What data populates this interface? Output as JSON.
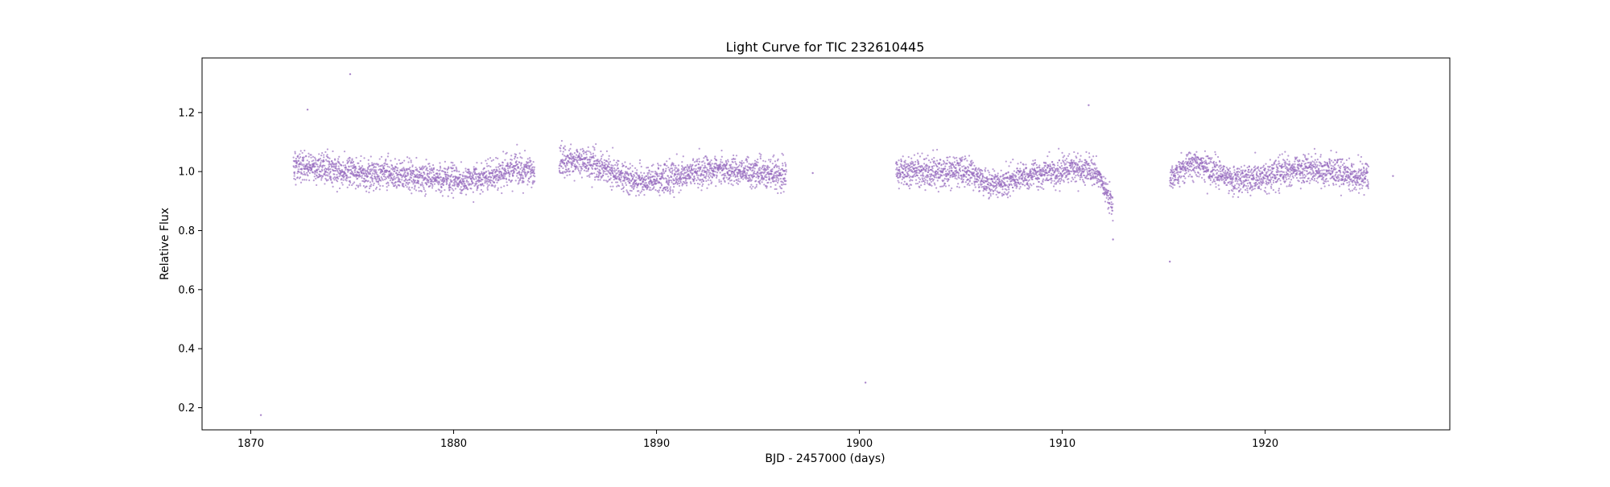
{
  "colors": {
    "points": "#9467bd",
    "axes": "#000000",
    "background": "#ffffff"
  },
  "chart_data": {
    "type": "scatter",
    "title": "Light Curve for TIC 232610445",
    "xlabel": "BJD - 2457000 (days)",
    "ylabel": "Relative Flux",
    "xlim": [
      1867.6,
      1929.1
    ],
    "ylim": [
      0.125,
      1.385
    ],
    "grid": false,
    "legend": "none",
    "x_ticks": [
      1870,
      1880,
      1890,
      1900,
      1910,
      1920
    ],
    "x_tick_labels": [
      "1870",
      "1880",
      "1890",
      "1900",
      "1910",
      "1920"
    ],
    "y_ticks": [
      0.2,
      0.4,
      0.6,
      0.8,
      1.0,
      1.2
    ],
    "y_tick_labels": [
      "0.2",
      "0.4",
      "0.6",
      "0.8",
      "1.0",
      "1.2"
    ],
    "series": [
      {
        "marker": "dot",
        "segments": [
          {
            "x_start": 1872.1,
            "x_end": 1884.0,
            "trend": [
              [
                1872.1,
                1.02
              ],
              [
                1875.0,
                1.0
              ],
              [
                1879.5,
                0.975
              ],
              [
                1881.0,
                0.97
              ],
              [
                1883.0,
                1.01
              ],
              [
                1884.0,
                1.0
              ]
            ],
            "spread": 0.045
          },
          {
            "x_start": 1885.2,
            "x_end": 1896.4,
            "trend": [
              [
                1885.2,
                1.03
              ],
              [
                1886.5,
                1.04
              ],
              [
                1889.0,
                0.965
              ],
              [
                1890.5,
                0.975
              ],
              [
                1893.0,
                1.01
              ],
              [
                1896.4,
                0.985
              ]
            ],
            "spread": 0.045
          },
          {
            "x_start": 1901.8,
            "x_end": 1912.5,
            "trend": [
              [
                1901.8,
                1.0
              ],
              [
                1905.5,
                1.0
              ],
              [
                1906.2,
                0.955
              ],
              [
                1908.5,
                0.985
              ],
              [
                1910.5,
                1.01
              ],
              [
                1911.8,
                0.99
              ],
              [
                1912.5,
                0.87
              ]
            ],
            "spread": 0.045
          },
          {
            "x_start": 1915.3,
            "x_end": 1925.1,
            "trend": [
              [
                1915.3,
                0.98
              ],
              [
                1916.5,
                1.03
              ],
              [
                1918.5,
                0.97
              ],
              [
                1922.0,
                1.01
              ],
              [
                1925.1,
                0.98
              ]
            ],
            "spread": 0.045
          }
        ],
        "outliers": [
          {
            "x": 1870.5,
            "y": 0.175
          },
          {
            "x": 1874.9,
            "y": 1.33
          },
          {
            "x": 1872.8,
            "y": 1.21
          },
          {
            "x": 1897.7,
            "y": 0.995
          },
          {
            "x": 1900.3,
            "y": 0.285
          },
          {
            "x": 1911.3,
            "y": 1.225
          },
          {
            "x": 1915.3,
            "y": 0.695
          },
          {
            "x": 1926.3,
            "y": 0.985
          },
          {
            "x": 1912.5,
            "y": 0.77
          }
        ]
      }
    ]
  }
}
